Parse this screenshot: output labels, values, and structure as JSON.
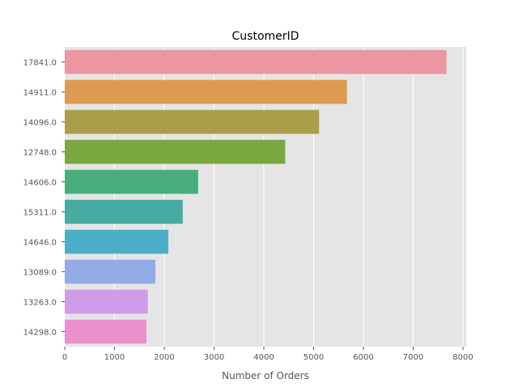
{
  "chart_data": {
    "type": "bar",
    "orientation": "horizontal",
    "title": "CustomerID",
    "xlabel": "Number of Orders",
    "ylabel": "",
    "categories": [
      "17841.0",
      "14911.0",
      "14096.0",
      "12748.0",
      "14606.0",
      "15311.0",
      "14646.0",
      "13089.0",
      "13263.0",
      "14298.0"
    ],
    "values": [
      7670,
      5670,
      5110,
      4430,
      2680,
      2370,
      2080,
      1820,
      1670,
      1640
    ],
    "colors": [
      "#ec96a1",
      "#dd9a51",
      "#ab9e48",
      "#7aa73f",
      "#47ae7b",
      "#46aba0",
      "#4caec7",
      "#94abe8",
      "#cf9ce9",
      "#ea91cd"
    ],
    "xlim": [
      0,
      8000
    ],
    "xticks": [
      "0",
      "1000",
      "2000",
      "3000",
      "4000",
      "5000",
      "6000",
      "7000",
      "8000"
    ],
    "grid": true,
    "background": "#e5e5e5"
  }
}
